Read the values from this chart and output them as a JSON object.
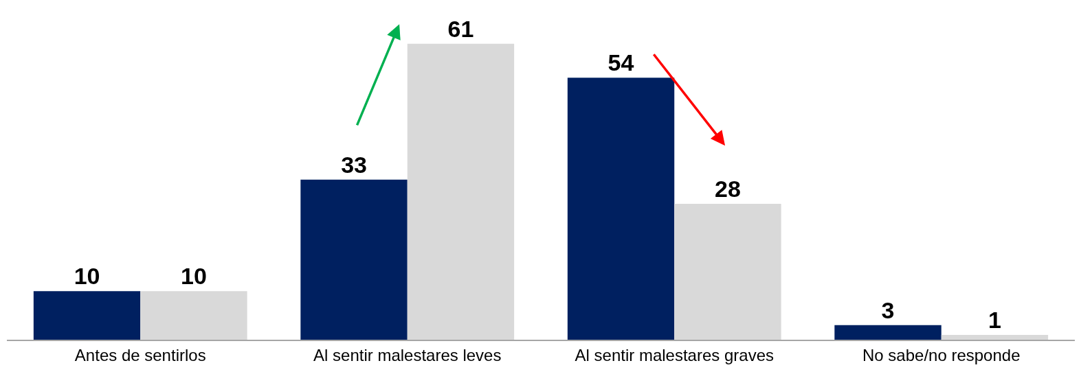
{
  "chart_data": {
    "type": "bar",
    "categories": [
      "Antes de sentirlos",
      "Al sentir malestares leves",
      "Al sentir malestares graves",
      "No sabe/no responde"
    ],
    "series": [
      {
        "color": "#002060",
        "values": [
          10,
          33,
          54,
          3
        ]
      },
      {
        "color": "#d9d9d9",
        "values": [
          10,
          61,
          28,
          1
        ]
      }
    ],
    "ylim": [
      0,
      70
    ],
    "data_labels": true
  }
}
